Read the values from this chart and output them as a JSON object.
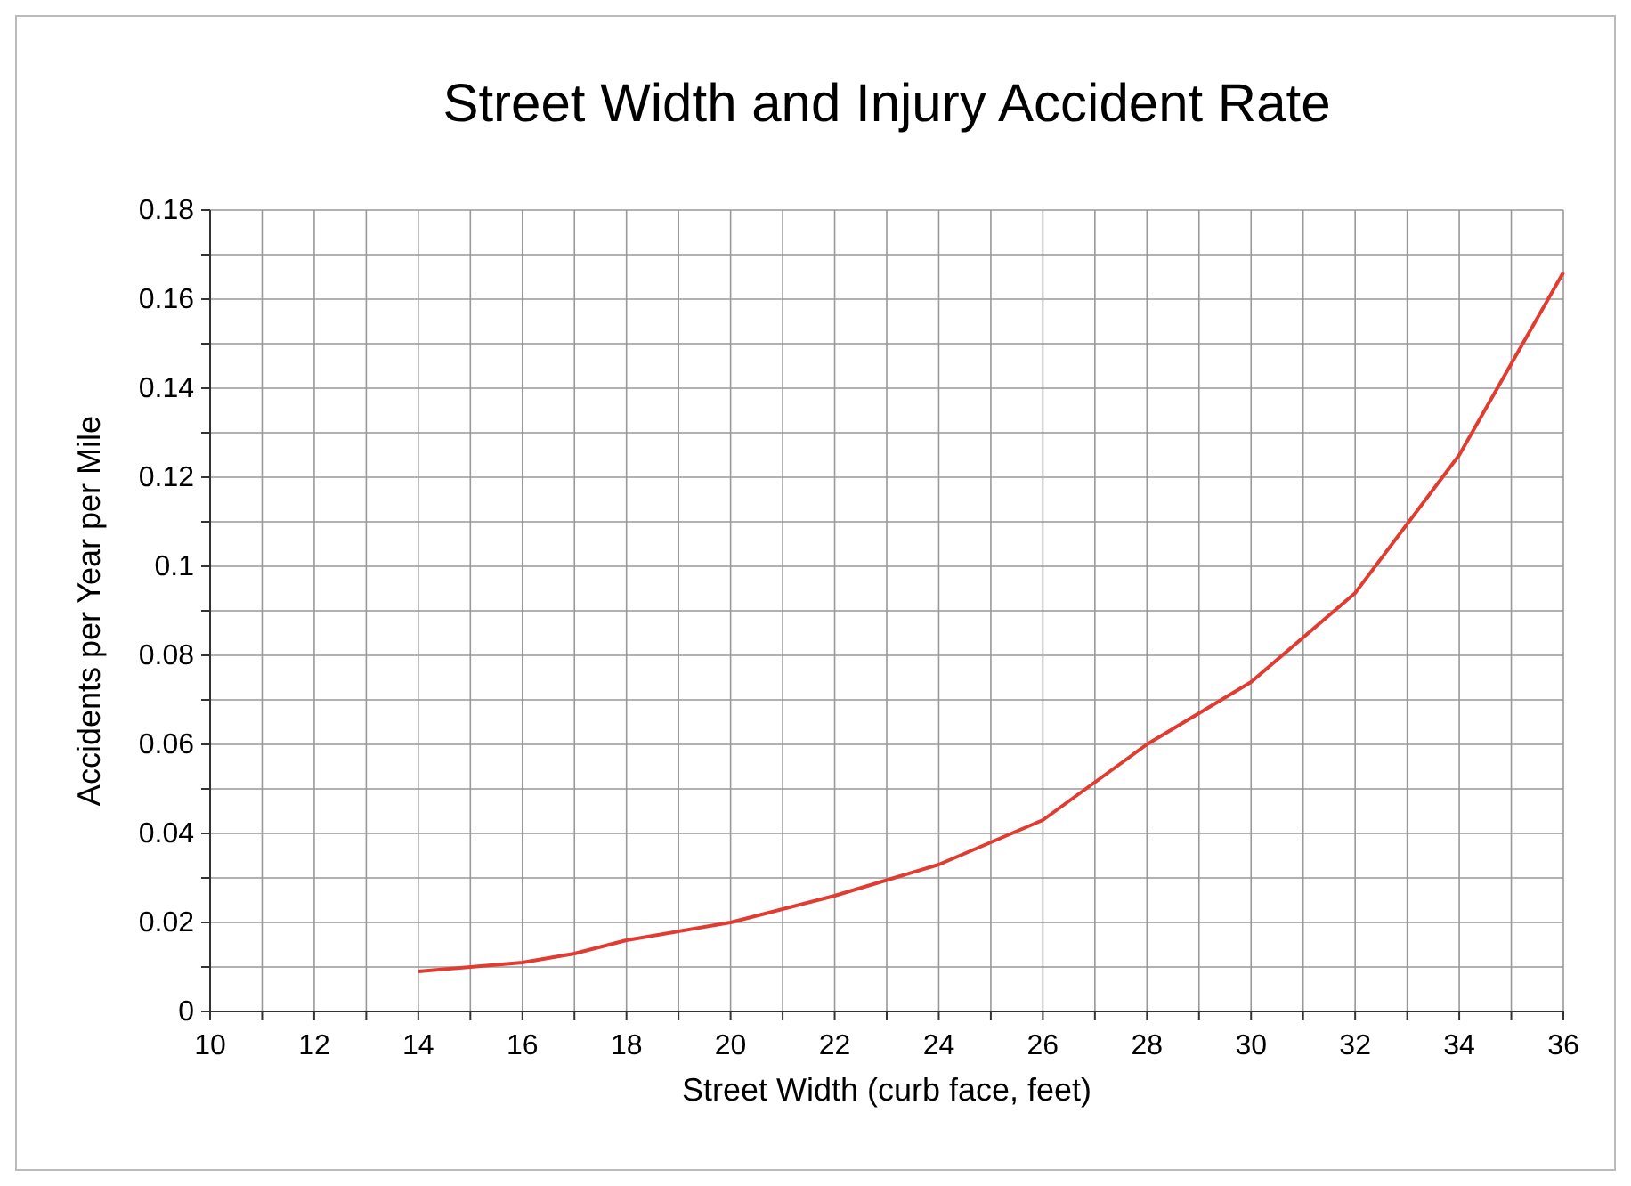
{
  "chart_data": {
    "type": "line",
    "title": "Street Width and Injury Accident Rate",
    "xlabel": "Street Width (curb face, feet)",
    "ylabel": "Accidents per Year per Mile",
    "x": [
      14,
      16,
      17,
      18,
      20,
      22,
      24,
      26,
      28,
      30,
      32,
      34,
      36
    ],
    "series": [
      {
        "color": "#e03c31",
        "values": [
          0.009,
          0.011,
          0.013,
          0.016,
          0.02,
          0.026,
          0.033,
          0.043,
          0.06,
          0.074,
          0.094,
          0.125,
          0.166
        ]
      }
    ],
    "xlim": [
      10,
      36
    ],
    "xticks": [
      10,
      {
        "value": 11,
        "label": null
      },
      12,
      {
        "value": 13,
        "label": null
      },
      14,
      {
        "value": 15,
        "label": null
      },
      16,
      {
        "value": 17,
        "label": null
      },
      18,
      {
        "value": 19,
        "label": null
      },
      20,
      {
        "value": 21,
        "label": null
      },
      22,
      {
        "value": 23,
        "label": null
      },
      24,
      {
        "value": 25,
        "label": null
      },
      26,
      {
        "value": 27,
        "label": null
      },
      28,
      {
        "value": 29,
        "label": null
      },
      30,
      {
        "value": 31,
        "label": null
      },
      32,
      {
        "value": 33,
        "label": null
      },
      34,
      {
        "value": 35,
        "label": null
      },
      36
    ],
    "ylim": [
      0,
      0.18
    ],
    "yticks": [
      0,
      {
        "value": 0.01,
        "label": null
      },
      0.02,
      {
        "value": 0.03,
        "label": null
      },
      0.04,
      {
        "value": 0.05,
        "label": null
      },
      0.06,
      {
        "value": 0.07,
        "label": null
      },
      0.08,
      {
        "value": 0.09,
        "label": null
      },
      0.1,
      {
        "value": 0.11,
        "label": null
      },
      0.12,
      {
        "value": 0.13,
        "label": null
      },
      0.14,
      {
        "value": 0.15,
        "label": null
      },
      0.16,
      {
        "value": 0.17,
        "label": null
      },
      0.18
    ],
    "grid": true,
    "marker": "none",
    "line_style": "solid"
  }
}
